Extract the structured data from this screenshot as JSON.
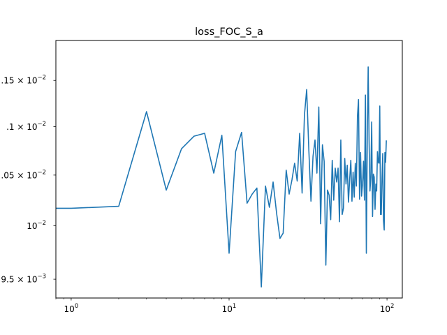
{
  "chart_data": {
    "type": "line",
    "title": "loss_FOC_S_a",
    "xlabel": "",
    "ylabel": "",
    "xscale": "log",
    "yscale": "log",
    "xlim": [
      0.8,
      125
    ],
    "ylim": [
      0.00933,
      0.01195
    ],
    "grid": false,
    "x_ticks": [
      {
        "value": 1,
        "label": "10",
        "exp": "0"
      },
      {
        "value": 10,
        "label": "10",
        "exp": "1"
      },
      {
        "value": 100,
        "label": "10",
        "exp": "2"
      }
    ],
    "y_ticks": [
      {
        "value": 0.0095,
        "label": "9.5 × 10",
        "exp": "−3"
      },
      {
        "value": 0.01,
        "label": "10",
        "exp": "−2"
      },
      {
        "value": 0.0105,
        "label": ".05 × 10",
        "exp": "−2"
      },
      {
        "value": 0.011,
        "label": ".1 × 10",
        "exp": "−2"
      },
      {
        "value": 0.0115,
        "label": ".15 × 10",
        "exp": "−2"
      }
    ],
    "color": "#1f77b4",
    "series": [
      {
        "x": [
          0,
          1,
          2,
          3,
          4,
          5,
          6,
          7,
          8,
          9,
          10,
          11,
          12,
          13,
          14,
          15,
          16,
          17,
          18,
          19,
          20,
          21,
          22,
          23,
          24,
          25,
          26,
          27,
          28,
          29,
          30,
          31,
          32,
          33,
          34,
          35,
          36,
          37,
          38,
          39,
          40,
          41,
          42,
          43,
          44,
          45,
          46,
          47,
          48,
          49,
          50,
          51,
          52,
          53,
          54,
          55,
          56,
          57,
          58,
          59,
          60,
          61,
          62,
          63,
          64,
          65,
          66,
          67,
          68,
          69,
          70,
          71,
          72,
          73,
          74,
          75,
          76,
          77,
          78,
          79,
          80,
          81,
          82,
          83,
          84,
          85,
          86,
          87,
          88,
          89,
          90,
          91,
          92,
          93,
          94,
          95,
          96,
          97,
          98,
          99
        ],
        "y": [
          0.01017,
          0.01017,
          0.01019,
          0.01116,
          0.01035,
          0.01077,
          0.0109,
          0.01093,
          0.01052,
          0.01091,
          0.00974,
          0.01074,
          0.01094,
          0.01022,
          0.01031,
          0.01037,
          0.00943,
          0.01039,
          0.01018,
          0.01043,
          0.01012,
          0.00988,
          0.00993,
          0.01055,
          0.01031,
          0.01045,
          0.01062,
          0.01044,
          0.01093,
          0.01032,
          0.01112,
          0.0114,
          0.01075,
          0.01024,
          0.01069,
          0.01086,
          0.01052,
          0.01121,
          0.01002,
          0.01081,
          0.01064,
          0.00963,
          0.01035,
          0.0103,
          0.01006,
          0.01065,
          0.01025,
          0.01057,
          0.01043,
          0.01057,
          0.01004,
          0.01086,
          0.01011,
          0.01017,
          0.01067,
          0.01041,
          0.0106,
          0.01023,
          0.01045,
          0.01065,
          0.01024,
          0.01053,
          0.01028,
          0.01062,
          0.01039,
          0.01111,
          0.01129,
          0.01026,
          0.01073,
          0.01029,
          0.01041,
          0.01064,
          0.01025,
          0.01134,
          0.00974,
          0.01086,
          0.01165,
          0.01086,
          0.01034,
          0.01048,
          0.01105,
          0.01009,
          0.01051,
          0.01048,
          0.01016,
          0.01041,
          0.01034,
          0.01074,
          0.01063,
          0.01062,
          0.01122,
          0.01011,
          0.01011,
          0.01047,
          0.01072,
          0.01005,
          0.00996,
          0.01073,
          0.01063,
          0.01085
        ]
      }
    ]
  }
}
